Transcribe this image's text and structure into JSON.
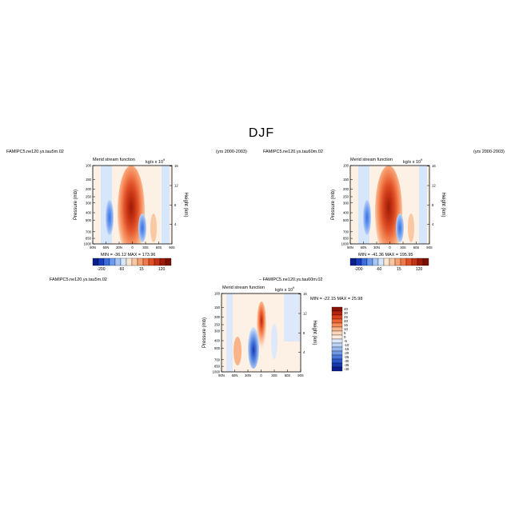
{
  "figure": {
    "title": "DJF",
    "panels": [
      {
        "id": "left",
        "case": "FAMIPC5.ne120.ys.tau5m.02",
        "years": "(yrs 2000-2003)",
        "field": "Merid stream function",
        "units": "kg/s x 10",
        "units_exp": "9",
        "ylabel": "Pressure (mb)",
        "ylabel_right": "Height (km)",
        "minmax": "MIN = -36.12   MAX = 173.96"
      },
      {
        "id": "right",
        "case": "FAMIPC5.ne120.ys.tau60m.02",
        "years": "(yrs 2000-2003)",
        "field": "Merid stream function",
        "units": "kg/s x 10",
        "units_exp": "9",
        "ylabel": "Pressure (mb)",
        "ylabel_right": "Height (km)",
        "minmax": "MIN = -41.36   MAX = 195.95"
      },
      {
        "id": "diff",
        "case": "FAMIPC5.ne120.ys.tau5m.02",
        "case2": "– FAMIPC5.ne120.ys.tau60m.02",
        "field": "Merid stream function",
        "units": "kg/s x 10",
        "units_exp": "9",
        "ylabel": "Pressure (mb)",
        "ylabel_right": "Height (km)",
        "minmax": "MIN = -22.15   MAX = 25.98"
      }
    ],
    "xticks": [
      "90N",
      "60N",
      "30N",
      "0",
      "30S",
      "60S",
      "90S"
    ],
    "yticks": [
      "100",
      "150",
      "200",
      "250",
      "300",
      "400",
      "500",
      "700",
      "850",
      "1000"
    ],
    "height_ticks": [
      "16",
      "12",
      "8",
      "4"
    ],
    "colorbar_main_labels": [
      "-200",
      "-60",
      "15",
      "120"
    ],
    "colorbar_diff_labels": [
      "40",
      "30",
      "25",
      "20",
      "15",
      "10",
      "5",
      "0",
      "-5",
      "-10",
      "-15",
      "-20",
      "-25",
      "-30",
      "-35",
      "-40"
    ]
  },
  "colors": {
    "main_scale": [
      "#0a1f8c",
      "#1a3cbf",
      "#3b6fe0",
      "#6d9bef",
      "#a7c5f5",
      "#d6e6fb",
      "#fde6d0",
      "#fbc8a4",
      "#f7a174",
      "#f07a4a",
      "#e05028",
      "#c43314",
      "#9e1b08",
      "#7a1004"
    ],
    "diff_scale": [
      "#8a1206",
      "#b62410",
      "#d9401c",
      "#ef6332",
      "#f78c5a",
      "#fab48a",
      "#fdd6bb",
      "#fdebe0",
      "#dde9fb",
      "#bcd3f6",
      "#97b9f0",
      "#6f98e6",
      "#4a78dc",
      "#2c57cc",
      "#1838b0",
      "#0a1f8c"
    ]
  },
  "chart_data": [
    {
      "type": "heatmap",
      "title": "Merid stream function",
      "xlabel": "",
      "ylabel": "Pressure (mb)",
      "x_categories": [
        "90N",
        "60N",
        "30N",
        "0",
        "30S",
        "60S",
        "90S"
      ],
      "y_categories": [
        "100",
        "150",
        "200",
        "250",
        "300",
        "400",
        "500",
        "700",
        "850",
        "1000"
      ],
      "min": -36.12,
      "max": 173.96,
      "colorbar_levels": [
        -200,
        -60,
        15,
        120
      ]
    },
    {
      "type": "heatmap",
      "title": "Merid stream function",
      "xlabel": "",
      "ylabel": "Pressure (mb)",
      "x_categories": [
        "90N",
        "60N",
        "30N",
        "0",
        "30S",
        "60S",
        "90S"
      ],
      "y_categories": [
        "100",
        "150",
        "200",
        "250",
        "300",
        "400",
        "500",
        "700",
        "850",
        "1000"
      ],
      "min": -41.36,
      "max": 195.95,
      "colorbar_levels": [
        -200,
        -60,
        15,
        120
      ]
    },
    {
      "type": "heatmap",
      "title": "Merid stream function",
      "xlabel": "",
      "ylabel": "Pressure (mb)",
      "x_categories": [
        "90N",
        "60N",
        "30N",
        "0",
        "30S",
        "60S",
        "90S"
      ],
      "y_categories": [
        "100",
        "150",
        "200",
        "250",
        "300",
        "400",
        "500",
        "700",
        "850",
        "1000"
      ],
      "min": -22.15,
      "max": 25.98,
      "colorbar_levels": [
        40,
        30,
        25,
        20,
        15,
        10,
        5,
        0,
        -5,
        -10,
        -15,
        -20,
        -25,
        -30,
        -35,
        -40
      ]
    }
  ]
}
